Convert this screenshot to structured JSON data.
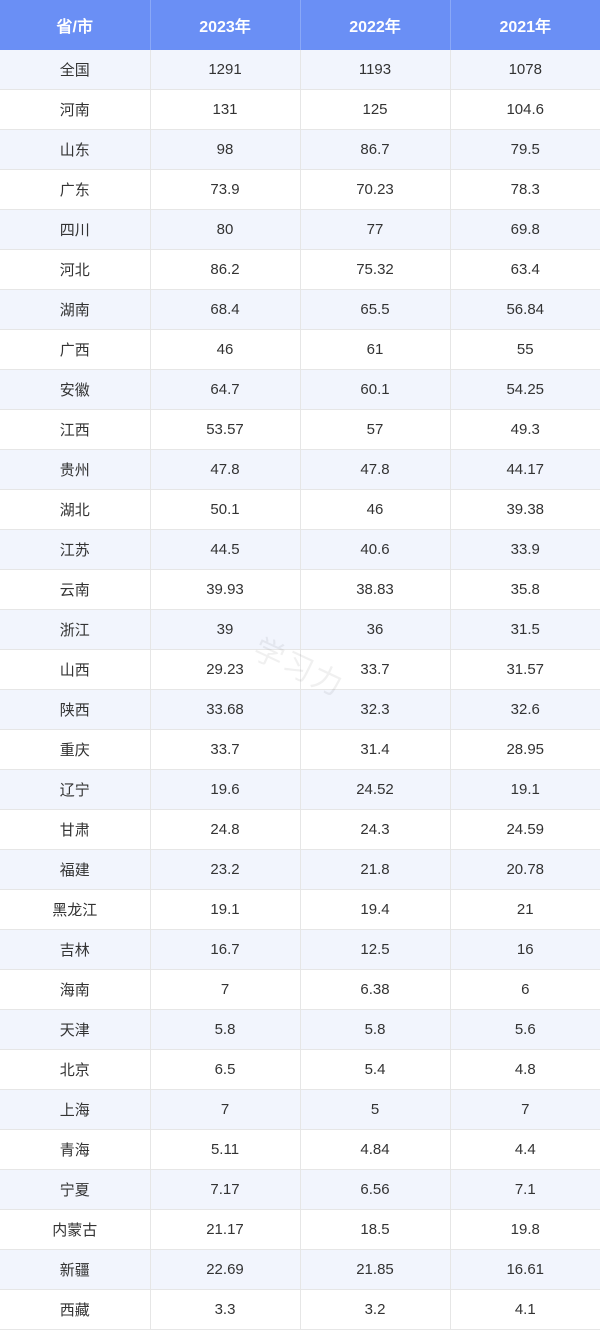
{
  "table": {
    "type": "table",
    "header_bg": "#6a8ff5",
    "header_text_color": "#ffffff",
    "row_odd_bg": "#f2f5fd",
    "row_even_bg": "#ffffff",
    "border_color": "#e6e6e6",
    "cell_text_color": "#333333",
    "header_fontsize": 16,
    "cell_fontsize": 15,
    "columns": [
      "省/市",
      "2023年",
      "2022年",
      "2021年"
    ],
    "column_widths": [
      "25%",
      "25%",
      "25%",
      "25%"
    ],
    "rows": [
      [
        "全国",
        "1291",
        "1193",
        "1078"
      ],
      [
        "河南",
        "131",
        "125",
        "104.6"
      ],
      [
        "山东",
        "98",
        "86.7",
        "79.5"
      ],
      [
        "广东",
        "73.9",
        "70.23",
        "78.3"
      ],
      [
        "四川",
        "80",
        "77",
        "69.8"
      ],
      [
        "河北",
        "86.2",
        "75.32",
        "63.4"
      ],
      [
        "湖南",
        "68.4",
        "65.5",
        "56.84"
      ],
      [
        "广西",
        "46",
        "61",
        "55"
      ],
      [
        "安徽",
        "64.7",
        "60.1",
        "54.25"
      ],
      [
        "江西",
        "53.57",
        "57",
        "49.3"
      ],
      [
        "贵州",
        "47.8",
        "47.8",
        "44.17"
      ],
      [
        "湖北",
        "50.1",
        "46",
        "39.38"
      ],
      [
        "江苏",
        "44.5",
        "40.6",
        "33.9"
      ],
      [
        "云南",
        "39.93",
        "38.83",
        "35.8"
      ],
      [
        "浙江",
        "39",
        "36",
        "31.5"
      ],
      [
        "山西",
        "29.23",
        "33.7",
        "31.57"
      ],
      [
        "陕西",
        "33.68",
        "32.3",
        "32.6"
      ],
      [
        "重庆",
        "33.7",
        "31.4",
        "28.95"
      ],
      [
        "辽宁",
        "19.6",
        "24.52",
        "19.1"
      ],
      [
        "甘肃",
        "24.8",
        "24.3",
        "24.59"
      ],
      [
        "福建",
        "23.2",
        "21.8",
        "20.78"
      ],
      [
        "黑龙江",
        "19.1",
        "19.4",
        "21"
      ],
      [
        "吉林",
        "16.7",
        "12.5",
        "16"
      ],
      [
        "海南",
        "7",
        "6.38",
        "6"
      ],
      [
        "天津",
        "5.8",
        "5.8",
        "5.6"
      ],
      [
        "北京",
        "6.5",
        "5.4",
        "4.8"
      ],
      [
        "上海",
        "7",
        "5",
        "7"
      ],
      [
        "青海",
        "5.11",
        "4.84",
        "4.4"
      ],
      [
        "宁夏",
        "7.17",
        "6.56",
        "7.1"
      ],
      [
        "内蒙古",
        "21.17",
        "18.5",
        "19.8"
      ],
      [
        "新疆",
        "22.69",
        "21.85",
        "16.61"
      ],
      [
        "西藏",
        "3.3",
        "3.2",
        "4.1"
      ]
    ]
  },
  "watermark": {
    "text": "学习力",
    "color": "rgba(0,0,0,0.06)",
    "fontsize": 30,
    "rotation_deg": 25
  }
}
